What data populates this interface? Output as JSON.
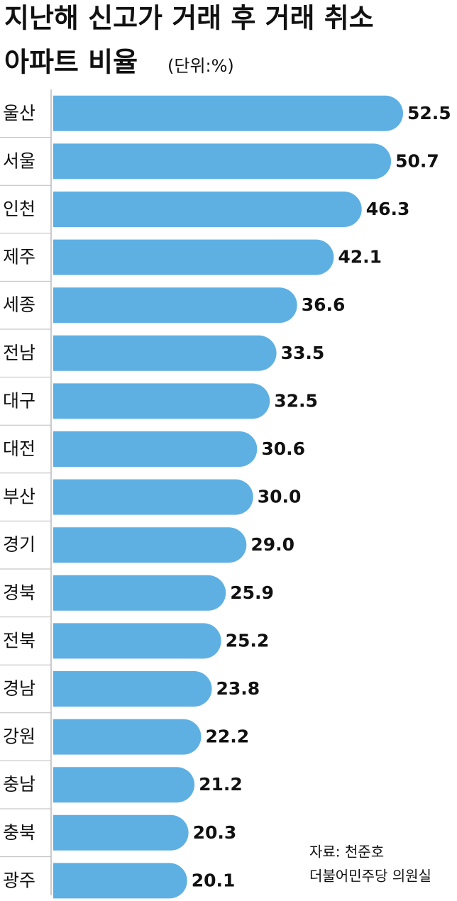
{
  "chart_data": {
    "type": "hbar",
    "title": [
      "지난해 신고가 거래 후 거래 취소",
      "아파트 비율"
    ],
    "subtitle": "(단위:%)",
    "source": [
      "자료: 천준호",
      "더불어민주당 의원실"
    ],
    "categories": [
      "울산",
      "서울",
      "인천",
      "제주",
      "세종",
      "전남",
      "대구",
      "대전",
      "부산",
      "경기",
      "경북",
      "전북",
      "경남",
      "강원",
      "충남",
      "충북",
      "광주"
    ],
    "values": [
      52.5,
      50.7,
      46.3,
      42.1,
      36.6,
      33.5,
      32.5,
      30.6,
      30.0,
      29.0,
      25.9,
      25.2,
      23.8,
      22.2,
      21.2,
      20.3,
      20.1
    ],
    "value_labels": [
      "52.5",
      "50.7",
      "46.3",
      "42.1",
      "36.6",
      "33.5",
      "32.5",
      "30.6",
      "30.0",
      "29.0",
      "25.9",
      "25.2",
      "23.8",
      "22.2",
      "21.2",
      "20.3",
      "20.1"
    ],
    "color": "#5eb0e3"
  }
}
